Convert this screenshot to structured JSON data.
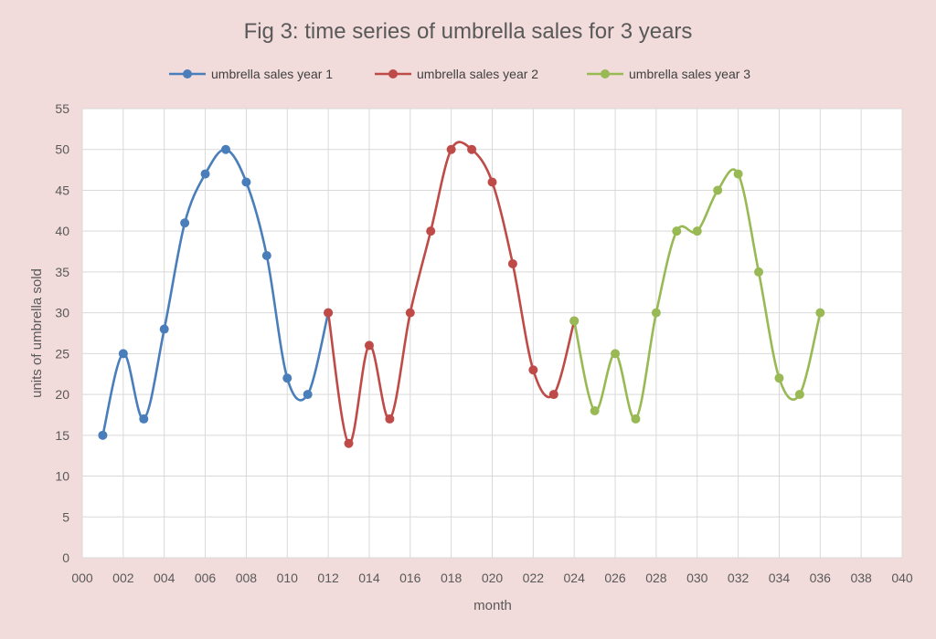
{
  "chart_data": {
    "type": "line",
    "title": "Fig 3: time series of umbrella sales for 3 years",
    "xlabel": "month",
    "ylabel": "units of umbrella sold",
    "xlim": [
      0,
      40
    ],
    "ylim": [
      0,
      55
    ],
    "x_ticks": [
      "000",
      "002",
      "004",
      "006",
      "008",
      "010",
      "012",
      "014",
      "016",
      "018",
      "020",
      "022",
      "024",
      "026",
      "028",
      "030",
      "032",
      "034",
      "036",
      "038",
      "040"
    ],
    "y_ticks": [
      "0",
      "5",
      "10",
      "15",
      "20",
      "25",
      "30",
      "35",
      "40",
      "45",
      "50",
      "55"
    ],
    "grid": true,
    "legend_position": "top",
    "series": [
      {
        "name": "umbrella sales year 1",
        "color": "#4a7ebb",
        "x": [
          1,
          2,
          3,
          4,
          5,
          6,
          7,
          8,
          9,
          10,
          11,
          12
        ],
        "values": [
          15,
          25,
          17,
          28,
          41,
          47,
          50,
          46,
          37,
          22,
          20,
          30
        ]
      },
      {
        "name": "umbrella sales year 2",
        "color": "#be4b48",
        "x": [
          12,
          13,
          14,
          15,
          16,
          17,
          18,
          19,
          20,
          21,
          22,
          23,
          24
        ],
        "values": [
          30,
          14,
          26,
          17,
          30,
          40,
          50,
          50,
          46,
          36,
          23,
          20,
          29
        ]
      },
      {
        "name": "umbrella sales year 3",
        "color": "#98b954",
        "x": [
          24,
          25,
          26,
          27,
          28,
          29,
          30,
          31,
          32,
          33,
          34,
          35,
          36
        ],
        "values": [
          29,
          18,
          25,
          17,
          30,
          40,
          40,
          45,
          47,
          35,
          22,
          20,
          30
        ]
      }
    ]
  }
}
